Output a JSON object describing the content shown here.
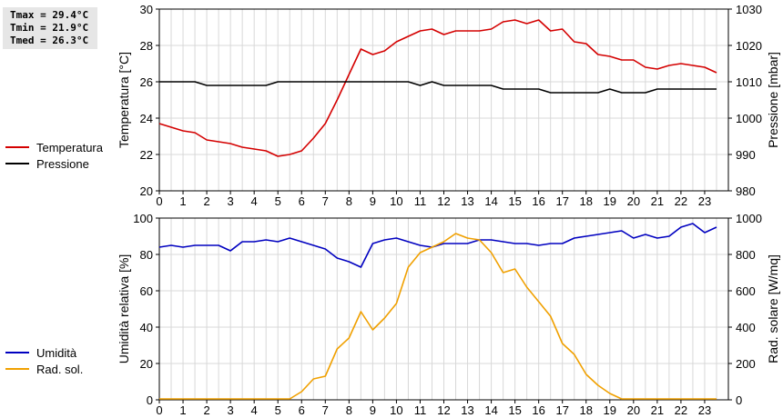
{
  "stats": {
    "tmax": "Tmax = 29.4°C",
    "tmin": "Tmin = 21.9°C",
    "tmed": "Tmed = 26.3°C"
  },
  "legend_top": [
    {
      "label": "Temperatura",
      "color": "#d40000"
    },
    {
      "label": "Pressione",
      "color": "#000000"
    }
  ],
  "legend_bottom": [
    {
      "label": "Umidità",
      "color": "#0000c0"
    },
    {
      "label": "Rad. sol.",
      "color": "#f0a000"
    }
  ],
  "chart_data": [
    {
      "type": "line",
      "ylabel": "Temperatura [°C]",
      "y2label": "Pressione [mbar]",
      "xlim": [
        0,
        24
      ],
      "xticks": [
        0,
        1,
        2,
        3,
        4,
        5,
        6,
        7,
        8,
        9,
        10,
        11,
        12,
        13,
        14,
        15,
        16,
        17,
        18,
        19,
        20,
        21,
        22,
        23
      ],
      "ylim": [
        20,
        30
      ],
      "yticks": [
        20,
        22,
        24,
        26,
        28,
        30
      ],
      "y2lim": [
        980,
        1030
      ],
      "y2ticks": [
        980,
        990,
        1000,
        1010,
        1020,
        1030
      ],
      "grid": true,
      "series": [
        {
          "name": "Temperatura",
          "axis": "left",
          "color": "#d40000",
          "x": [
            0,
            0.5,
            1,
            1.5,
            2,
            2.5,
            3,
            3.5,
            4,
            4.5,
            5,
            5.5,
            6,
            6.5,
            7,
            7.5,
            8,
            8.5,
            9,
            9.5,
            10,
            10.5,
            11,
            11.5,
            12,
            12.5,
            13,
            13.5,
            14,
            14.5,
            15,
            15.5,
            16,
            16.5,
            17,
            17.5,
            18,
            18.5,
            19,
            19.5,
            20,
            20.5,
            21,
            21.5,
            22,
            22.5,
            23,
            23.5
          ],
          "y": [
            23.7,
            23.5,
            23.3,
            23.2,
            22.8,
            22.7,
            22.6,
            22.4,
            22.3,
            22.2,
            21.9,
            22.0,
            22.2,
            22.9,
            23.7,
            25.0,
            26.4,
            27.8,
            27.5,
            27.7,
            28.2,
            28.5,
            28.8,
            28.9,
            28.6,
            28.8,
            28.8,
            28.8,
            28.9,
            29.3,
            29.4,
            29.2,
            29.4,
            28.8,
            28.9,
            28.2,
            28.1,
            27.5,
            27.4,
            27.2,
            27.2,
            26.8,
            26.7,
            26.9,
            27.0,
            26.9,
            26.8,
            26.5
          ]
        },
        {
          "name": "Pressione",
          "axis": "right",
          "color": "#000000",
          "x": [
            0,
            0.5,
            1,
            1.5,
            2,
            2.5,
            3,
            3.5,
            4,
            4.5,
            5,
            5.5,
            6,
            6.5,
            7,
            7.5,
            8,
            8.5,
            9,
            9.5,
            10,
            10.5,
            11,
            11.5,
            12,
            12.5,
            13,
            13.5,
            14,
            14.5,
            15,
            15.5,
            16,
            16.5,
            17,
            17.5,
            18,
            18.5,
            19,
            19.5,
            20,
            20.5,
            21,
            21.5,
            22,
            22.5,
            23,
            23.5
          ],
          "y": [
            1010,
            1010,
            1010,
            1010,
            1009,
            1009,
            1009,
            1009,
            1009,
            1009,
            1010,
            1010,
            1010,
            1010,
            1010,
            1010,
            1010,
            1010,
            1010,
            1010,
            1010,
            1010,
            1009,
            1010,
            1009,
            1009,
            1009,
            1009,
            1009,
            1008,
            1008,
            1008,
            1008,
            1007,
            1007,
            1007,
            1007,
            1007,
            1008,
            1007,
            1007,
            1007,
            1008,
            1008,
            1008,
            1008,
            1008,
            1008
          ]
        }
      ]
    },
    {
      "type": "line",
      "ylabel": "Umidità relativa [%]",
      "y2label": "Rad. solare [W/mq]",
      "xlim": [
        0,
        24
      ],
      "xticks": [
        0,
        1,
        2,
        3,
        4,
        5,
        6,
        7,
        8,
        9,
        10,
        11,
        12,
        13,
        14,
        15,
        16,
        17,
        18,
        19,
        20,
        21,
        22,
        23
      ],
      "ylim": [
        0,
        100
      ],
      "yticks": [
        0,
        20,
        40,
        60,
        80,
        100
      ],
      "y2lim": [
        0,
        1000
      ],
      "y2ticks": [
        0,
        200,
        400,
        600,
        800,
        1000
      ],
      "grid": true,
      "series": [
        {
          "name": "Umidità",
          "axis": "left",
          "color": "#0000c0",
          "x": [
            0,
            0.5,
            1,
            1.5,
            2,
            2.5,
            3,
            3.5,
            4,
            4.5,
            5,
            5.5,
            6,
            6.5,
            7,
            7.5,
            8,
            8.5,
            9,
            9.5,
            10,
            10.5,
            11,
            11.5,
            12,
            12.5,
            13,
            13.5,
            14,
            14.5,
            15,
            15.5,
            16,
            16.5,
            17,
            17.5,
            18,
            18.5,
            19,
            19.5,
            20,
            20.5,
            21,
            21.5,
            22,
            22.5,
            23,
            23.5
          ],
          "y": [
            84,
            85,
            84,
            85,
            85,
            85,
            82,
            87,
            87,
            88,
            87,
            89,
            87,
            85,
            83,
            78,
            76,
            73,
            86,
            88,
            89,
            87,
            85,
            84,
            86,
            86,
            86,
            88,
            88,
            87,
            86,
            86,
            85,
            86,
            86,
            89,
            90,
            91,
            92,
            93,
            89,
            91,
            89,
            90,
            95,
            97,
            92,
            95
          ]
        },
        {
          "name": "Rad. sol.",
          "axis": "right",
          "color": "#f0a000",
          "x": [
            0,
            0.5,
            1,
            1.5,
            2,
            2.5,
            3,
            3.5,
            4,
            4.5,
            5,
            5.5,
            6,
            6.5,
            7,
            7.5,
            8,
            8.5,
            9,
            9.5,
            10,
            10.5,
            11,
            11.5,
            12,
            12.5,
            13,
            13.5,
            14,
            14.5,
            15,
            15.5,
            16,
            16.5,
            17,
            17.5,
            18,
            18.5,
            19,
            19.5,
            20,
            20.5,
            21,
            21.5,
            22,
            22.5,
            23,
            23.5
          ],
          "y": [
            5,
            5,
            5,
            5,
            5,
            5,
            5,
            5,
            5,
            5,
            5,
            5,
            45,
            115,
            130,
            280,
            340,
            485,
            385,
            450,
            530,
            730,
            810,
            840,
            870,
            915,
            890,
            880,
            810,
            700,
            720,
            620,
            540,
            460,
            310,
            250,
            140,
            80,
            35,
            5,
            5,
            5,
            5,
            5,
            5,
            5,
            5,
            5
          ]
        }
      ]
    }
  ]
}
